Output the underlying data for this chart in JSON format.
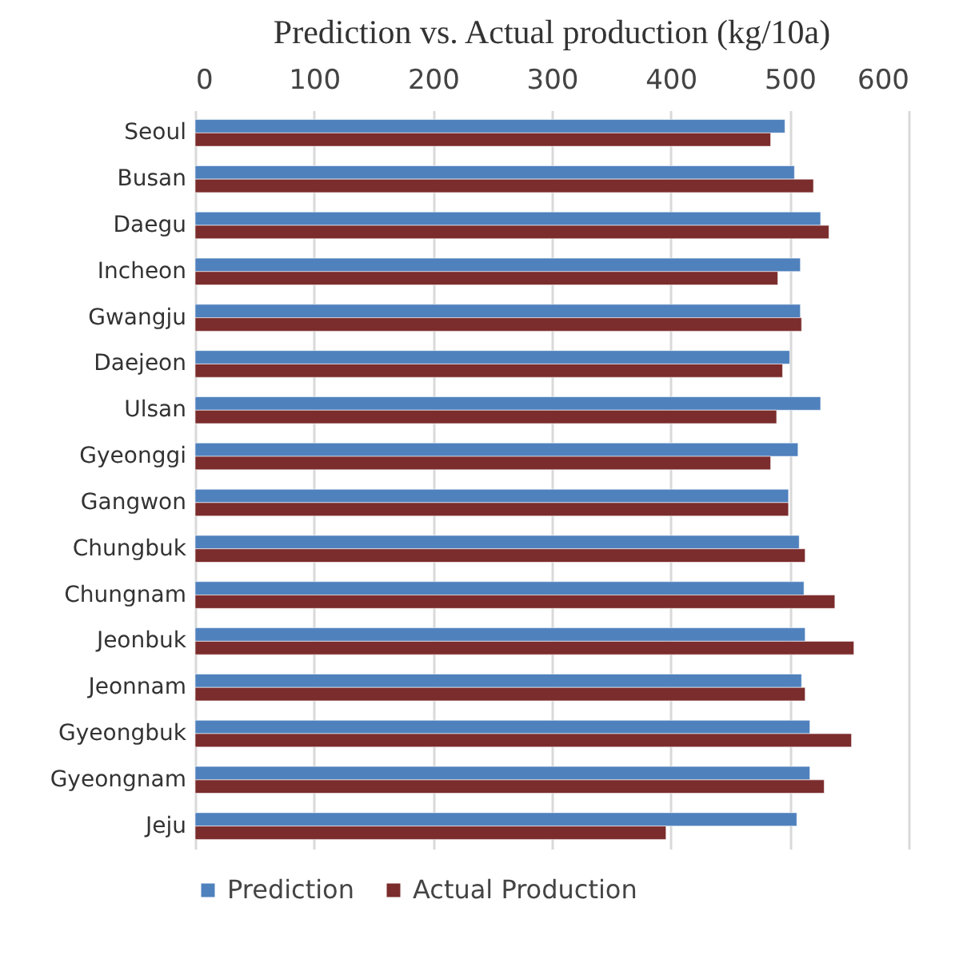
{
  "chart_data": {
    "type": "bar",
    "orientation": "horizontal",
    "title": "Prediction vs. Actual production (kg/10a)",
    "categories": [
      "Seoul",
      "Busan",
      "Daegu",
      "Incheon",
      "Gwangju",
      "Daejeon",
      "Ulsan",
      "Gyeonggi",
      "Gangwon",
      "Chungbuk",
      "Chungnam",
      "Jeonbuk",
      "Jeonnam",
      "Gyeongbuk",
      "Gyeongnam",
      "Jeju"
    ],
    "series": [
      {
        "name": "Prediction",
        "color": "#4f81bd",
        "values": [
          496,
          504,
          526,
          509,
          509,
          500,
          526,
          507,
          499,
          508,
          512,
          513,
          510,
          517,
          517,
          506
        ]
      },
      {
        "name": "Actual Production",
        "color": "#7b2c2c",
        "values": [
          484,
          520,
          533,
          490,
          510,
          494,
          489,
          484,
          499,
          513,
          538,
          554,
          513,
          552,
          529,
          396
        ]
      }
    ],
    "xlim": [
      0,
      600
    ],
    "xticks": [
      0,
      100,
      200,
      300,
      400,
      500,
      600
    ],
    "grid": "x",
    "legend": "bottom"
  }
}
